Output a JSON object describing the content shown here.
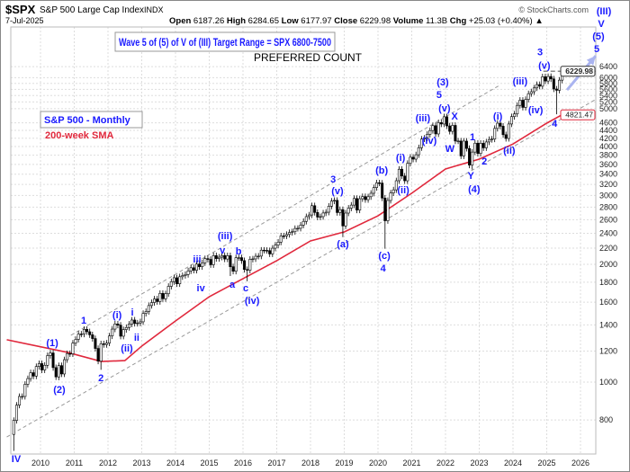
{
  "header": {
    "symbol": "$SPX",
    "name": "S&P 500 Large Cap Index",
    "exchange": "INDX",
    "date": "7-Jul-2025",
    "source": "© StockCharts.com",
    "open_label": "Open",
    "open": "6187.26",
    "high_label": "High",
    "high": "6284.65",
    "low_label": "Low",
    "low": "6177.97",
    "close_label": "Close",
    "close": "6229.98",
    "volume_label": "Volume",
    "volume": "11.3B",
    "chg_label": "Chg",
    "chg": "+25.03 (+0.40%)",
    "chg_icon": "up-arrow-icon"
  },
  "annotations": {
    "target_box": "Wave 5 of (5) of V of (III) Target Range = SPX 6800-7500",
    "preferred": "PREFERRED COUNT",
    "legend_title": "S&P 500 - Monthly",
    "legend_sma": "200-week SMA",
    "right_edge_labels": [
      "(III)",
      "V",
      "(5)",
      "5"
    ]
  },
  "colors": {
    "wave_labels": "#1a1aff",
    "sma": "#e0283c",
    "projection_arrow": "#aab4f0",
    "channel": "#999999"
  },
  "chart_data": {
    "type": "candlestick",
    "frequency": "monthly",
    "y_scale": "log",
    "ylim": [
      600,
      8800
    ],
    "xlim": [
      2009.0,
      2026.5
    ],
    "grid": true,
    "x_ticks": [
      "2010",
      "2011",
      "2012",
      "2013",
      "2014",
      "2015",
      "2016",
      "2017",
      "2018",
      "2019",
      "2020",
      "2021",
      "2022",
      "2023",
      "2024",
      "2025",
      "2026"
    ],
    "y_ticks": [
      800,
      1000,
      1200,
      1400,
      1600,
      1800,
      2000,
      2200,
      2400,
      2600,
      2800,
      3000,
      3200,
      3400,
      3600,
      3800,
      4000,
      4200,
      4400,
      4600,
      5000,
      5200,
      5400,
      5600,
      5800,
      6000,
      6400
    ],
    "last_close_label": "6229.98",
    "sma_last_label": "4821.47",
    "start": "2009-03",
    "first_open": 735,
    "closes": [
      798,
      873,
      919,
      919,
      987,
      1021,
      1057,
      1036,
      1096,
      1115,
      1074,
      1104,
      1169,
      1187,
      1089,
      1031,
      1102,
      1049,
      1141,
      1183,
      1181,
      1258,
      1286,
      1327,
      1326,
      1364,
      1345,
      1321,
      1292,
      1219,
      1131,
      1253,
      1247,
      1258,
      1312,
      1366,
      1408,
      1398,
      1310,
      1362,
      1379,
      1407,
      1441,
      1412,
      1416,
      1426,
      1498,
      1515,
      1569,
      1597,
      1631,
      1606,
      1686,
      1633,
      1682,
      1757,
      1806,
      1848,
      1783,
      1859,
      1872,
      1884,
      1924,
      1960,
      1931,
      2003,
      1972,
      2018,
      2068,
      2059,
      1995,
      2105,
      2068,
      2086,
      2107,
      2063,
      2104,
      1972,
      1920,
      2079,
      2080,
      2044,
      1940,
      1932,
      2060,
      2065,
      2097,
      2099,
      2174,
      2171,
      2168,
      2126,
      2199,
      2239,
      2279,
      2364,
      2363,
      2384,
      2412,
      2423,
      2470,
      2472,
      2519,
      2575,
      2648,
      2674,
      2824,
      2714,
      2641,
      2648,
      2705,
      2718,
      2816,
      2902,
      2914,
      2712,
      2760,
      2507,
      2704,
      2784,
      2834,
      2946,
      2752,
      2942,
      2980,
      2926,
      2977,
      3038,
      3141,
      3231,
      3226,
      2954,
      2585,
      2912,
      3044,
      3100,
      3271,
      3500,
      3363,
      3270,
      3622,
      3756,
      3714,
      3811,
      3973,
      4181,
      4204,
      4298,
      4395,
      4523,
      4308,
      4605,
      4567,
      4766,
      4516,
      4374,
      4530,
      4132,
      4132,
      3785,
      4130,
      3955,
      3586,
      3872,
      4080,
      3840,
      4077,
      3970,
      4109,
      4169,
      4180,
      4450,
      4589,
      4508,
      4288,
      4194,
      4568,
      4770,
      4846,
      5096,
      5254,
      5036,
      5278,
      5460,
      5522,
      5648,
      5762,
      5705,
      6032,
      5882,
      6041,
      5955,
      5612,
      5569,
      5912,
      6205,
      6230
    ],
    "notable_lows": {
      "2009-03": 667,
      "2010-07": 1011,
      "2011-10": 1075,
      "2015-08": 1867,
      "2016-02": 1810,
      "2018-12": 2347,
      "2020-03": 2192,
      "2022-10": 3492,
      "2025-04": 4835
    },
    "sma_200_week": [
      [
        2009.0,
        1283
      ],
      [
        2010.8,
        1191
      ],
      [
        2011.8,
        1129
      ],
      [
        2012.5,
        1135
      ],
      [
        2013.0,
        1236
      ],
      [
        2014.0,
        1433
      ],
      [
        2015.0,
        1653
      ],
      [
        2016.0,
        1838
      ],
      [
        2017.0,
        2043
      ],
      [
        2018.0,
        2295
      ],
      [
        2019.0,
        2420
      ],
      [
        2020.0,
        2660
      ],
      [
        2021.0,
        3040
      ],
      [
        2022.0,
        3505
      ],
      [
        2023.0,
        3715
      ],
      [
        2024.0,
        4060
      ],
      [
        2025.0,
        4590
      ],
      [
        2025.45,
        4821
      ]
    ],
    "channel_lines": [
      {
        "from": [
          2010.9,
          1317
        ],
        "to": [
          2023.6,
          5735
        ]
      },
      {
        "from": [
          2009.0,
          724
        ],
        "to": [
          2026.48,
          5295
        ]
      }
    ],
    "projection_arrow": {
      "from": [
        2025.6,
        5580
      ],
      "to": [
        2026.45,
        6820
      ]
    },
    "wave_labels": [
      {
        "text": "IV",
        "date": 2009.28,
        "price": 638
      },
      {
        "text": "(1)",
        "date": 2010.35,
        "price": 1262
      },
      {
        "text": "(2)",
        "date": 2010.56,
        "price": 958
      },
      {
        "text": "1",
        "date": 2011.28,
        "price": 1440
      },
      {
        "text": "2",
        "date": 2011.79,
        "price": 1027
      },
      {
        "text": "(i)",
        "date": 2012.27,
        "price": 1487
      },
      {
        "text": "i",
        "date": 2012.72,
        "price": 1510
      },
      {
        "text": "ii",
        "date": 2012.85,
        "price": 1303
      },
      {
        "text": "(ii)",
        "date": 2012.56,
        "price": 1223
      },
      {
        "text": "iii",
        "date": 2014.64,
        "price": 2063
      },
      {
        "text": "iv",
        "date": 2014.75,
        "price": 1744
      },
      {
        "text": "(iii)",
        "date": 2015.47,
        "price": 2367
      },
      {
        "text": "v",
        "date": 2015.39,
        "price": 2177
      },
      {
        "text": "b",
        "date": 2015.87,
        "price": 2166
      },
      {
        "text": "a",
        "date": 2015.68,
        "price": 1780
      },
      {
        "text": "c",
        "date": 2016.08,
        "price": 1744
      },
      {
        "text": "(iv)",
        "date": 2016.27,
        "price": 1619
      },
      {
        "text": "3",
        "date": 2018.67,
        "price": 3306
      },
      {
        "text": "(v)",
        "date": 2018.8,
        "price": 3088
      },
      {
        "text": "(a)",
        "date": 2018.96,
        "price": 2260
      },
      {
        "text": "(b)",
        "date": 2020.11,
        "price": 3483
      },
      {
        "text": "(c)",
        "date": 2020.19,
        "price": 2107
      },
      {
        "text": "4",
        "date": 2020.15,
        "price": 1958
      },
      {
        "text": "(i)",
        "date": 2020.67,
        "price": 3752
      },
      {
        "text": "(ii)",
        "date": 2020.75,
        "price": 3103
      },
      {
        "text": "(3)",
        "date": 2021.92,
        "price": 5854
      },
      {
        "text": "5",
        "date": 2021.81,
        "price": 5437
      },
      {
        "text": "(iii)",
        "date": 2021.33,
        "price": 4734
      },
      {
        "text": "(v)",
        "date": 2021.97,
        "price": 5018
      },
      {
        "text": "X",
        "date": 2022.27,
        "price": 4784
      },
      {
        "text": "(iv)",
        "date": 2021.52,
        "price": 4150
      },
      {
        "text": "W",
        "date": 2022.13,
        "price": 3954
      },
      {
        "text": "1",
        "date": 2022.8,
        "price": 4240
      },
      {
        "text": "2",
        "date": 2023.15,
        "price": 3675
      },
      {
        "text": "Y",
        "date": 2022.75,
        "price": 3379
      },
      {
        "text": "(4)",
        "date": 2022.85,
        "price": 3118
      },
      {
        "text": "(i)",
        "date": 2023.55,
        "price": 4784
      },
      {
        "text": "(ii)",
        "date": 2023.89,
        "price": 3915
      },
      {
        "text": "(iii)",
        "date": 2024.21,
        "price": 5890
      },
      {
        "text": "(iv)",
        "date": 2024.67,
        "price": 4966
      },
      {
        "text": "3",
        "date": 2024.8,
        "price": 6985
      },
      {
        "text": "(v)",
        "date": 2024.93,
        "price": 6460
      },
      {
        "text": "4",
        "date": 2025.23,
        "price": 4593
      }
    ]
  }
}
